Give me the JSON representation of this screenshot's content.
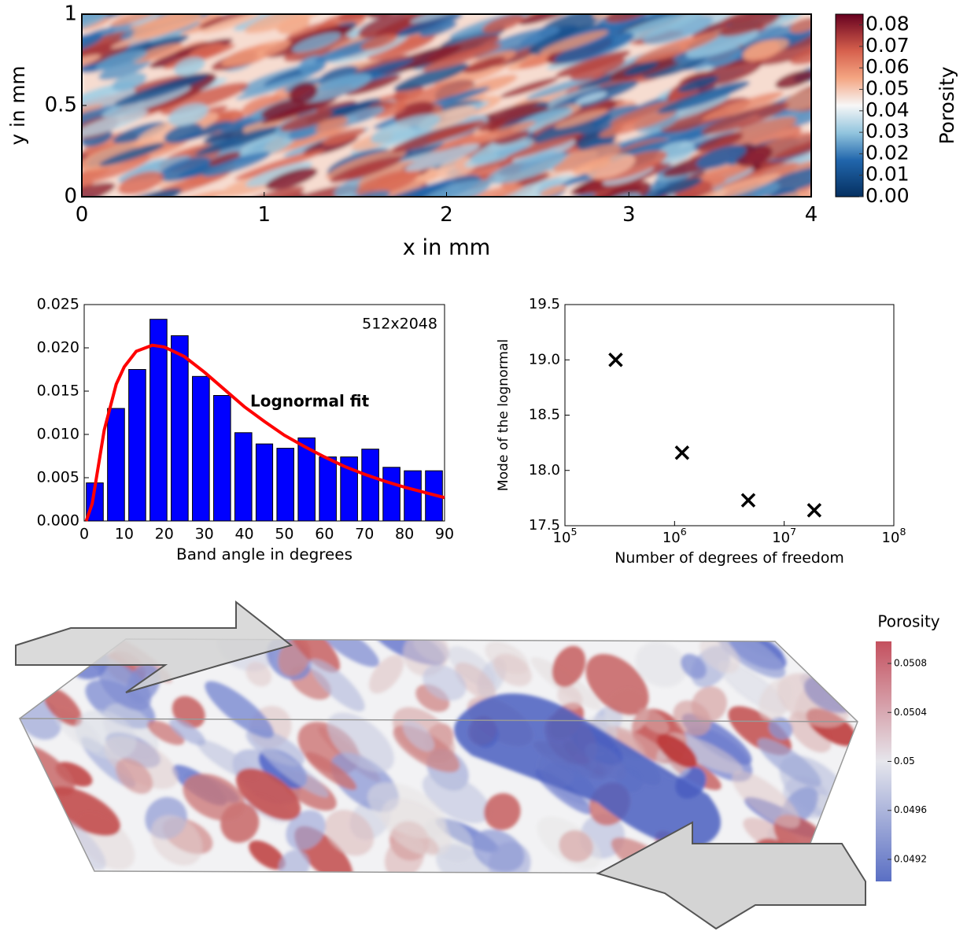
{
  "chart_data": [
    {
      "type": "heatmap",
      "xlabel": "x in mm",
      "ylabel": "y in mm",
      "xlim": [
        0,
        4
      ],
      "ylim": [
        0,
        1
      ],
      "xticks": [
        0,
        1,
        2,
        3,
        4
      ],
      "yticks": [
        0,
        0.5,
        1
      ],
      "colorbar": {
        "label": "Porosity",
        "lim": [
          0,
          0.085
        ],
        "ticks": [
          {
            "value": 0,
            "label": "0.00"
          },
          {
            "value": 0.01,
            "label": "0.01"
          },
          {
            "value": 0.02,
            "label": "0.02"
          },
          {
            "value": 0.03,
            "label": "0.03"
          },
          {
            "value": 0.04,
            "label": "0.04"
          },
          {
            "value": 0.05,
            "label": "0.05"
          },
          {
            "value": 0.06,
            "label": "0.06"
          },
          {
            "value": 0.07,
            "label": "0.07"
          },
          {
            "value": 0.08,
            "label": "0.08"
          }
        ]
      }
    },
    {
      "type": "histogram",
      "xlabel": "Band angle in degrees",
      "annotation": "512x2048",
      "color": "#0000ff",
      "bins": [
        0,
        5.3,
        10.6,
        15.9,
        21.2,
        26.5,
        31.8,
        37.1,
        42.4,
        47.6,
        52.9,
        58.2,
        63.5,
        68.8,
        74.1,
        79.4,
        84.7,
        90
      ],
      "values": [
        0.0044,
        0.013,
        0.0175,
        0.0233,
        0.0214,
        0.0167,
        0.0145,
        0.0102,
        0.0089,
        0.0084,
        0.0096,
        0.0074,
        0.0074,
        0.0083,
        0.0062,
        0.0058,
        0.0058
      ],
      "xlim": [
        0,
        90
      ],
      "ylim": [
        0,
        0.025
      ],
      "xticks": [
        0,
        10,
        20,
        30,
        40,
        50,
        60,
        70,
        80,
        90
      ],
      "yticks": [
        {
          "value": 0,
          "label": "0.000"
        },
        0.005,
        {
          "value": 0.01,
          "label": "0.010"
        },
        0.015,
        {
          "value": 0.02,
          "label": "0.020"
        },
        0.025
      ],
      "series": [
        {
          "name": "Lognormal fit",
          "color": "#ff0000",
          "x": [
            0.5,
            2,
            5,
            8,
            10,
            13,
            17,
            20,
            25,
            30,
            35,
            40,
            45,
            50,
            55,
            60,
            65,
            70,
            75,
            80,
            85,
            90
          ],
          "values": [
            0,
            0.002,
            0.0105,
            0.0158,
            0.0178,
            0.0196,
            0.0203,
            0.0201,
            0.019,
            0.0172,
            0.0152,
            0.0132,
            0.0115,
            0.0099,
            0.0086,
            0.0074,
            0.0063,
            0.0054,
            0.0046,
            0.0039,
            0.0033,
            0.0027
          ]
        }
      ]
    },
    {
      "type": "scatter",
      "xlabel": "Number of degrees of freedom",
      "ylabel": "Mode of the lognormal",
      "xscale": "log",
      "marker": "x",
      "color": "#000000",
      "x": [
        290000,
        1170000,
        4700000,
        18800000
      ],
      "values": [
        19.0,
        18.16,
        17.73,
        17.64
      ],
      "xlim": [
        100000,
        100000000
      ],
      "ylim": [
        17.5,
        19.5
      ],
      "xticks": [
        {
          "value": 100000,
          "label": "10^5"
        },
        {
          "value": 1000000,
          "label": "10^6"
        },
        {
          "value": 10000000,
          "label": "10^7"
        },
        {
          "value": 100000000,
          "label": "10^8"
        }
      ],
      "yticks": [
        17.5,
        {
          "value": 18,
          "label": "18.0"
        },
        18.5,
        {
          "value": 19,
          "label": "19.0"
        },
        19.5
      ]
    },
    {
      "type": "volume",
      "colorbar": {
        "label": "Porosity",
        "lim": [
          0.04902,
          0.05098
        ],
        "ticks": [
          0.0508,
          0.0504,
          0.05,
          0.0496,
          0.0492
        ]
      }
    }
  ]
}
